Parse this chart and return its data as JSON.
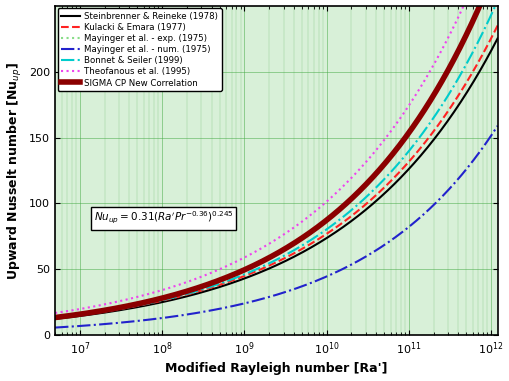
{
  "xlabel": "Modified Rayleigh number [Ra']",
  "ylabel": "Upward Nusselt number [Nu$_{up}$]",
  "xlim": [
    5000000.0,
    1200000000000.0
  ],
  "ylim": [
    0,
    250
  ],
  "yticks": [
    0,
    50,
    100,
    150,
    200
  ],
  "background_color": "#d8f0d8",
  "line_styles": [
    {
      "color": "#000000",
      "linestyle": "-",
      "linewidth": 1.5,
      "label": "Steinbrenner & Reineke (1978)"
    },
    {
      "color": "#ff2222",
      "linestyle": "--",
      "linewidth": 1.5,
      "label": "Kulacki & Emara (1977)"
    },
    {
      "color": "#88dd88",
      "linestyle": ":",
      "linewidth": 1.5,
      "label": "Mayinger et al. - exp. (1975)"
    },
    {
      "color": "#2222cc",
      "linestyle": "-.",
      "linewidth": 1.5,
      "label": "Mayinger et al. - num. (1975)"
    },
    {
      "color": "#00cccc",
      "linestyle": "-.",
      "linewidth": 1.5,
      "label": "Bonnet & Seiler (1999)"
    },
    {
      "color": "#ee44ee",
      "linestyle": ":",
      "linewidth": 1.5,
      "label": "Theofanous et al. (1995)"
    },
    {
      "color": "#8b0000",
      "linestyle": "-",
      "linewidth": 4.0,
      "label": "SIGMA CP New Correlation"
    }
  ]
}
